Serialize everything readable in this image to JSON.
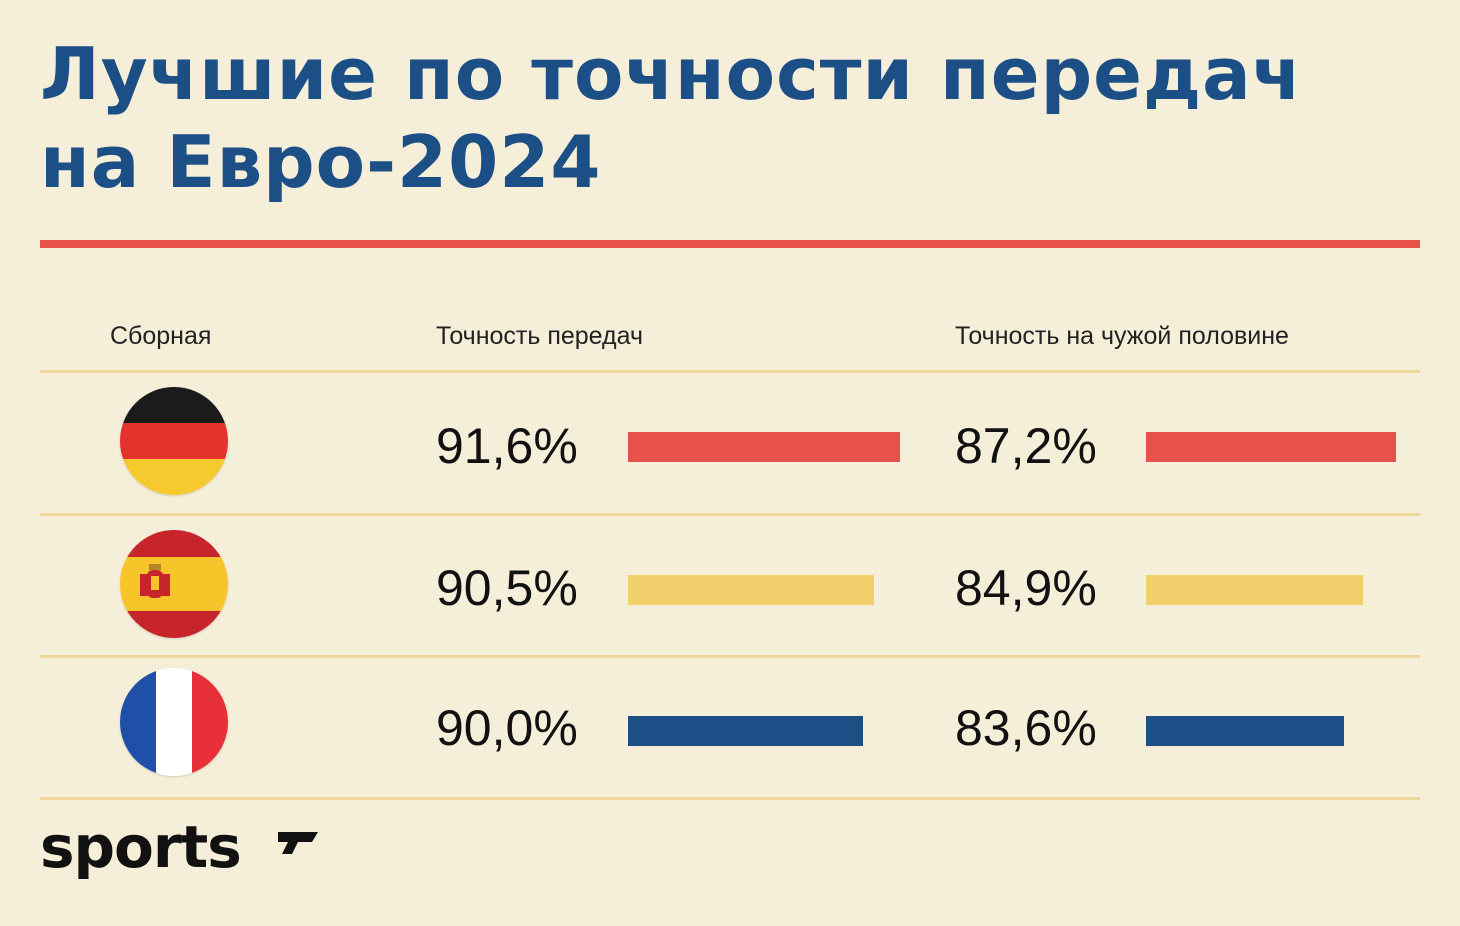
{
  "title": {
    "line1": "Лучшие по точности передач",
    "line2": "на Евро-2024"
  },
  "columns": {
    "team": "Сборная",
    "accuracy": "Точность передач",
    "opp_half": "Точность на чужой половине"
  },
  "chart_data": {
    "type": "bar",
    "title": "Лучшие по точности передач на Евро-2024",
    "categories": [
      "germany-flag",
      "spain-flag",
      "france-flag"
    ],
    "series": [
      {
        "name": "Точность передач",
        "values": [
          91.6,
          90.5,
          90.0
        ],
        "labels": [
          "91,6%",
          "90,5%",
          "90,0%"
        ]
      },
      {
        "name": "Точность на чужой половине",
        "values": [
          87.2,
          84.9,
          83.6
        ],
        "labels": [
          "87,2%",
          "84,9%",
          "83,6%"
        ]
      }
    ],
    "colors": [
      "#e9524a",
      "#f1cf6b",
      "#1c4f86"
    ]
  },
  "logo": {
    "text": "sports",
    "mark": "sports-logo-mark"
  }
}
